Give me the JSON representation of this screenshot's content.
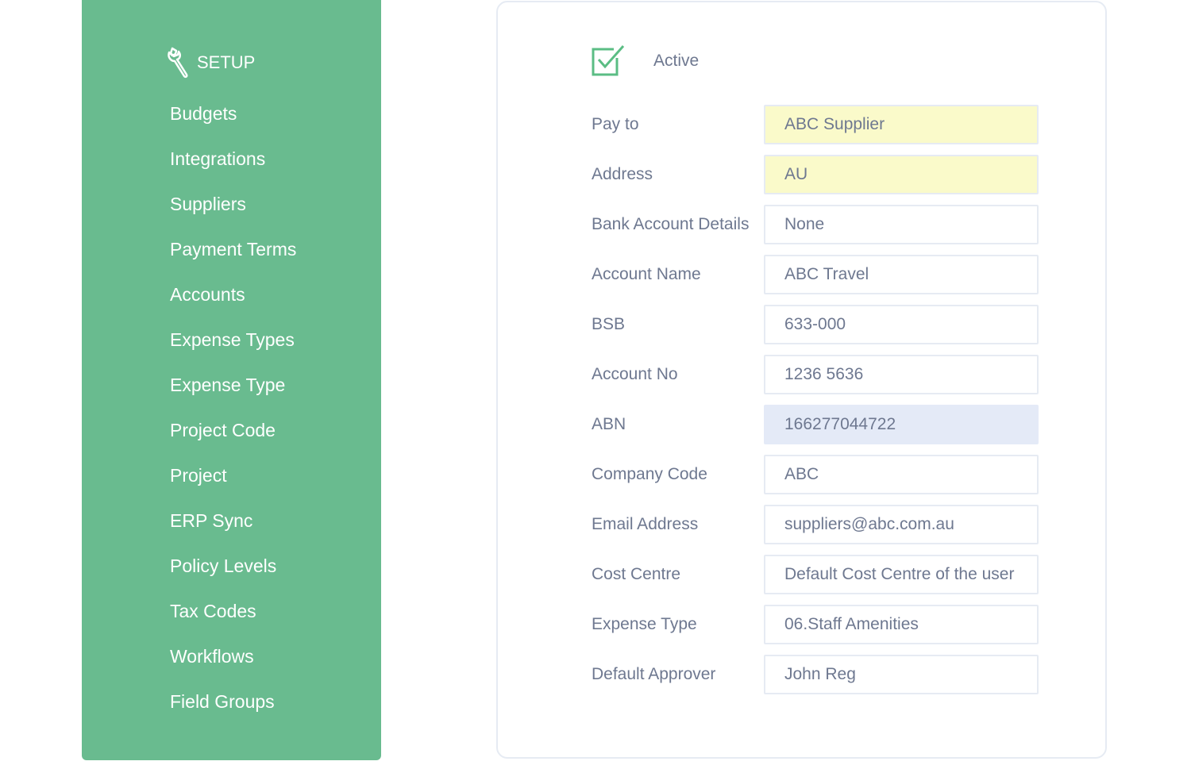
{
  "sidebar": {
    "heading": "SETUP",
    "heading_icon": "wrench-icon",
    "items": [
      "Budgets",
      "Integrations",
      "Suppliers",
      "Payment Terms",
      "Accounts",
      "Expense Types",
      "Expense Type",
      "Project Code",
      "Project",
      "ERP Sync",
      "Policy Levels",
      "Tax Codes",
      "Workflows",
      "Field Groups"
    ]
  },
  "form": {
    "active": {
      "label": "Active",
      "checked": true
    },
    "fields": [
      {
        "label": "Pay to",
        "value": "ABC Supplier",
        "highlight": "yellow"
      },
      {
        "label": "Address",
        "value": "AU",
        "highlight": "yellow"
      },
      {
        "label": "Bank Account Details",
        "value": "None"
      },
      {
        "label": "Account Name",
        "value": "ABC Travel"
      },
      {
        "label": "BSB",
        "value": "633-000"
      },
      {
        "label": "Account No",
        "value": "1236 5636"
      },
      {
        "label": "ABN",
        "value": "166277044722",
        "highlight": "blue"
      },
      {
        "label": "Company Code",
        "value": "ABC"
      },
      {
        "label": "Email Address",
        "value": "suppliers@abc.com.au"
      },
      {
        "label": "Cost Centre",
        "value": "Default Cost Centre of the user"
      },
      {
        "label": "Expense Type",
        "value": "06.Staff Amenities"
      },
      {
        "label": "Default Approver",
        "value": "John Reg"
      }
    ]
  },
  "colors": {
    "sidebar": "#69bb8f",
    "accent": "#5bbd84",
    "text": "#6e7890",
    "yellow": "#fafaca",
    "blue": "#e4eaf7"
  }
}
